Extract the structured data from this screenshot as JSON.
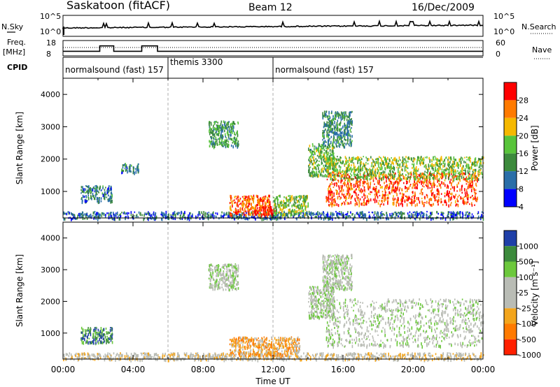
{
  "header": {
    "station": "Saskatoon (fitACF)",
    "beam": "Beam 12",
    "date": "16/Dec/2009"
  },
  "top_panels": {
    "nsky_label": "N.Sky",
    "nsky_ticks": [
      "10^5",
      "10^0"
    ],
    "nsearch_label": "N.Search",
    "nsearch_ticks": [
      "10^5",
      "10^0"
    ],
    "freq_label": "Freq.",
    "freq_unit": "[MHz]",
    "freq_ticks": [
      "18",
      "8"
    ],
    "nave_label": "Nave",
    "nave_ticks": [
      "60",
      "0"
    ],
    "cpid_label": "CPID",
    "cpid_segments": [
      {
        "label": "normalsound (fast) 157",
        "start_h": 0,
        "end_h": 6
      },
      {
        "label": "themis 3300",
        "start_h": 6,
        "end_h": 12
      },
      {
        "label": "normalsound (fast) 157",
        "start_h": 12,
        "end_h": 24
      }
    ],
    "freq_steps": [
      {
        "start_h": 0,
        "end_h": 2.1,
        "mhz": 11
      },
      {
        "start_h": 2.1,
        "end_h": 2.9,
        "mhz": 14.5
      },
      {
        "start_h": 2.9,
        "end_h": 4.5,
        "mhz": 11
      },
      {
        "start_h": 4.5,
        "end_h": 5.4,
        "mhz": 14.5
      },
      {
        "start_h": 5.4,
        "end_h": 24,
        "mhz": 11
      }
    ]
  },
  "chart_data": [
    {
      "type": "heatmap",
      "title": "",
      "xlabel": "",
      "ylabel": "Slant Range [km]",
      "xlim": [
        0,
        24
      ],
      "ylim": [
        180,
        4500
      ],
      "yticks": [
        1000,
        2000,
        3000,
        4000
      ],
      "colorbar": {
        "label": "Power [dB]",
        "ticks": [
          "28",
          "24",
          "20",
          "16",
          "12",
          "8",
          "4"
        ],
        "colors": [
          "#ff0000",
          "#ff7a00",
          "#f5b800",
          "#58c43a",
          "#3c8a3c",
          "#2a6ea8",
          "#0000ff"
        ]
      },
      "regions": [
        {
          "x": [
            0.0,
            24.0
          ],
          "y": [
            180,
            400
          ],
          "level": 0.22
        },
        {
          "x": [
            1.0,
            2.8
          ],
          "y": [
            700,
            1200
          ],
          "level": 0.28
        },
        {
          "x": [
            3.3,
            4.3
          ],
          "y": [
            1600,
            1900
          ],
          "level": 0.3
        },
        {
          "x": [
            8.3,
            10.0
          ],
          "y": [
            2400,
            3200
          ],
          "level": 0.38
        },
        {
          "x": [
            9.5,
            11.8
          ],
          "y": [
            300,
            900
          ],
          "level": 0.82
        },
        {
          "x": [
            10.8,
            12.2
          ],
          "y": [
            300,
            550
          ],
          "level": 0.96
        },
        {
          "x": [
            12.0,
            14.0
          ],
          "y": [
            300,
            900
          ],
          "level": 0.5
        },
        {
          "x": [
            14.0,
            15.5
          ],
          "y": [
            1500,
            2500
          ],
          "level": 0.45
        },
        {
          "x": [
            14.8,
            16.5
          ],
          "y": [
            2400,
            3500
          ],
          "level": 0.32
        },
        {
          "x": [
            15.0,
            23.7
          ],
          "y": [
            600,
            1600
          ],
          "level": 0.85
        },
        {
          "x": [
            15.0,
            24.0
          ],
          "y": [
            1400,
            2100
          ],
          "level": 0.5
        }
      ]
    },
    {
      "type": "heatmap",
      "title": "",
      "xlabel": "Time UT",
      "ylabel": "Slant Range [km]",
      "xlim": [
        0,
        24
      ],
      "ylim": [
        180,
        4500
      ],
      "yticks": [
        1000,
        2000,
        3000,
        4000
      ],
      "xticks": [
        "00:00",
        "04:00",
        "08:00",
        "12:00",
        "16:00",
        "20:00",
        "00:00"
      ],
      "colorbar": {
        "label": "Velocity [m s⁻¹]",
        "ticks": [
          "1000",
          "500",
          "100",
          "25",
          "-25",
          "-100",
          "-500",
          "-1000"
        ],
        "colors": [
          "#1f3fa8",
          "#3c8a3c",
          "#6cc83c",
          "#b9bcb5",
          "#b9bcb5",
          "#f3a51c",
          "#ff7a00",
          "#ff2000"
        ]
      },
      "regions": [
        {
          "x": [
            0.0,
            24.0
          ],
          "y": [
            180,
            400
          ],
          "level": 0.55
        },
        {
          "x": [
            1.0,
            2.8
          ],
          "y": [
            700,
            1200
          ],
          "level": 0.2
        },
        {
          "x": [
            8.3,
            10.0
          ],
          "y": [
            2400,
            3200
          ],
          "level": 0.45
        },
        {
          "x": [
            9.5,
            13.5
          ],
          "y": [
            300,
            900
          ],
          "level": 0.7
        },
        {
          "x": [
            14.0,
            15.5
          ],
          "y": [
            1500,
            2500
          ],
          "level": 0.45
        },
        {
          "x": [
            14.8,
            16.5
          ],
          "y": [
            2400,
            3500
          ],
          "level": 0.45
        },
        {
          "x": [
            15.0,
            24.0
          ],
          "y": [
            600,
            2100
          ],
          "level": 0.45
        }
      ]
    }
  ]
}
